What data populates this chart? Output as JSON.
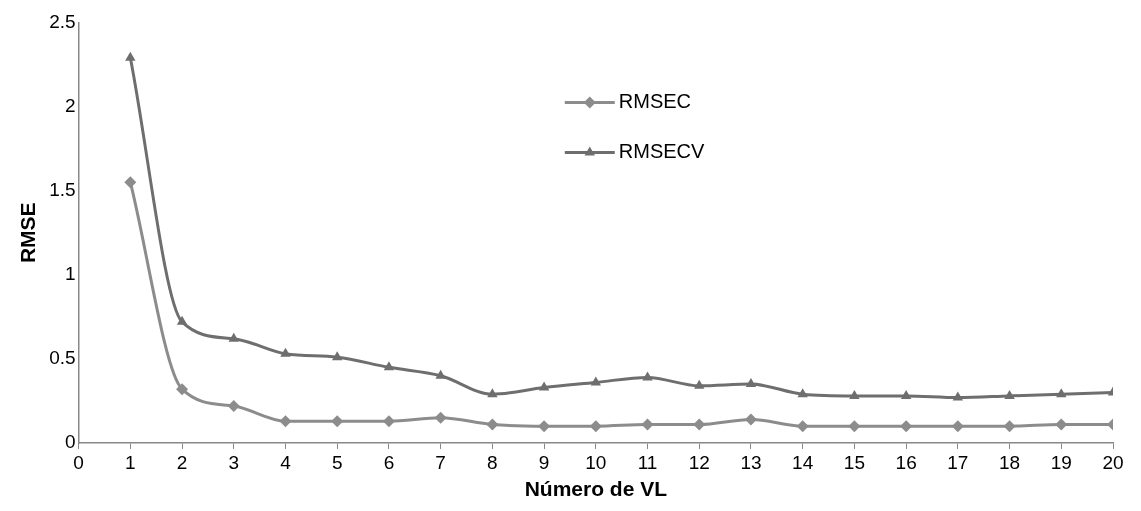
{
  "chart_data": {
    "type": "line",
    "xlabel": "Número de VL",
    "ylabel": "RMSE",
    "x": [
      1,
      2,
      3,
      4,
      5,
      6,
      7,
      8,
      9,
      10,
      11,
      12,
      13,
      14,
      15,
      16,
      17,
      18,
      19,
      20
    ],
    "series": [
      {
        "name": "RMSEC",
        "color": "#8c8c8c",
        "marker": "diamond",
        "values": [
          1.55,
          0.32,
          0.22,
          0.13,
          0.13,
          0.13,
          0.15,
          0.11,
          0.1,
          0.1,
          0.11,
          0.11,
          0.14,
          0.1,
          0.1,
          0.1,
          0.1,
          0.1,
          0.11,
          0.11
        ]
      },
      {
        "name": "RMSECV",
        "color": "#6e6e6e",
        "marker": "triangle",
        "values": [
          2.29,
          0.72,
          0.62,
          0.53,
          0.51,
          0.45,
          0.4,
          0.29,
          0.33,
          0.36,
          0.39,
          0.34,
          0.35,
          0.29,
          0.28,
          0.28,
          0.27,
          0.28,
          0.29,
          0.3
        ]
      }
    ],
    "xlim": [
      0,
      20
    ],
    "xticks": [
      0,
      1,
      2,
      3,
      4,
      5,
      6,
      7,
      8,
      9,
      10,
      11,
      12,
      13,
      14,
      15,
      16,
      17,
      18,
      19,
      20
    ],
    "ylim": [
      0,
      2.5
    ],
    "yticks": [
      0,
      0.5,
      1,
      1.5,
      2,
      2.5
    ],
    "grid": false,
    "legend": "top",
    "line_style": "solid"
  }
}
